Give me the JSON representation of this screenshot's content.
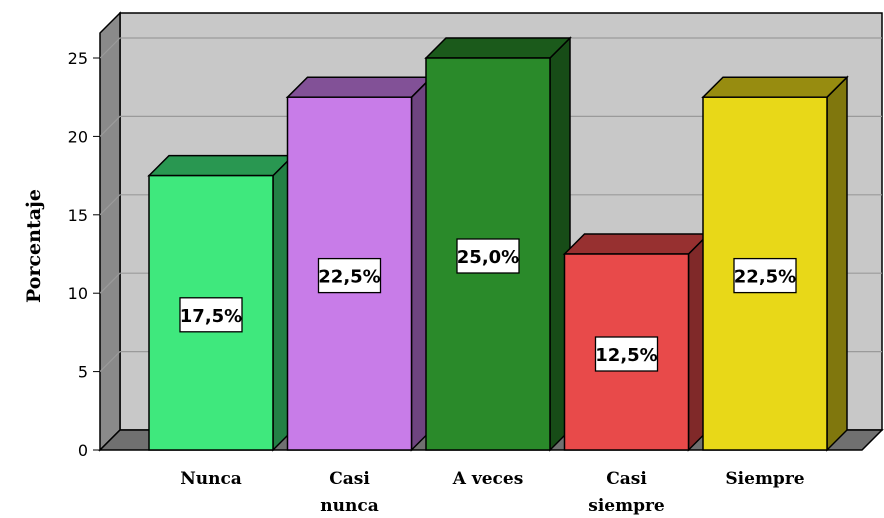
{
  "chart_data": {
    "type": "bar",
    "categories": [
      "Nunca",
      "Casi nunca",
      "A veces",
      "Casi siempre",
      "Siempre"
    ],
    "category_lines": [
      [
        "Nunca"
      ],
      [
        "Casi",
        "nunca"
      ],
      [
        "A veces"
      ],
      [
        "Casi",
        "siempre"
      ],
      [
        "Siempre"
      ]
    ],
    "values": [
      17.5,
      22.5,
      25.0,
      12.5,
      22.5
    ],
    "data_labels": [
      "17,5%",
      "22,5%",
      "25,0%",
      "12,5%",
      "22,5%"
    ],
    "colors": [
      "#3fe87d",
      "#c87ce8",
      "#2a8a2a",
      "#e84a4a",
      "#e8d818"
    ],
    "ylabel": "Porcentaje",
    "ylim": [
      0,
      25
    ],
    "yticks": [
      0,
      5,
      10,
      15,
      20,
      25
    ],
    "grid": true,
    "style": "3d",
    "background": "#c8c8c8"
  }
}
